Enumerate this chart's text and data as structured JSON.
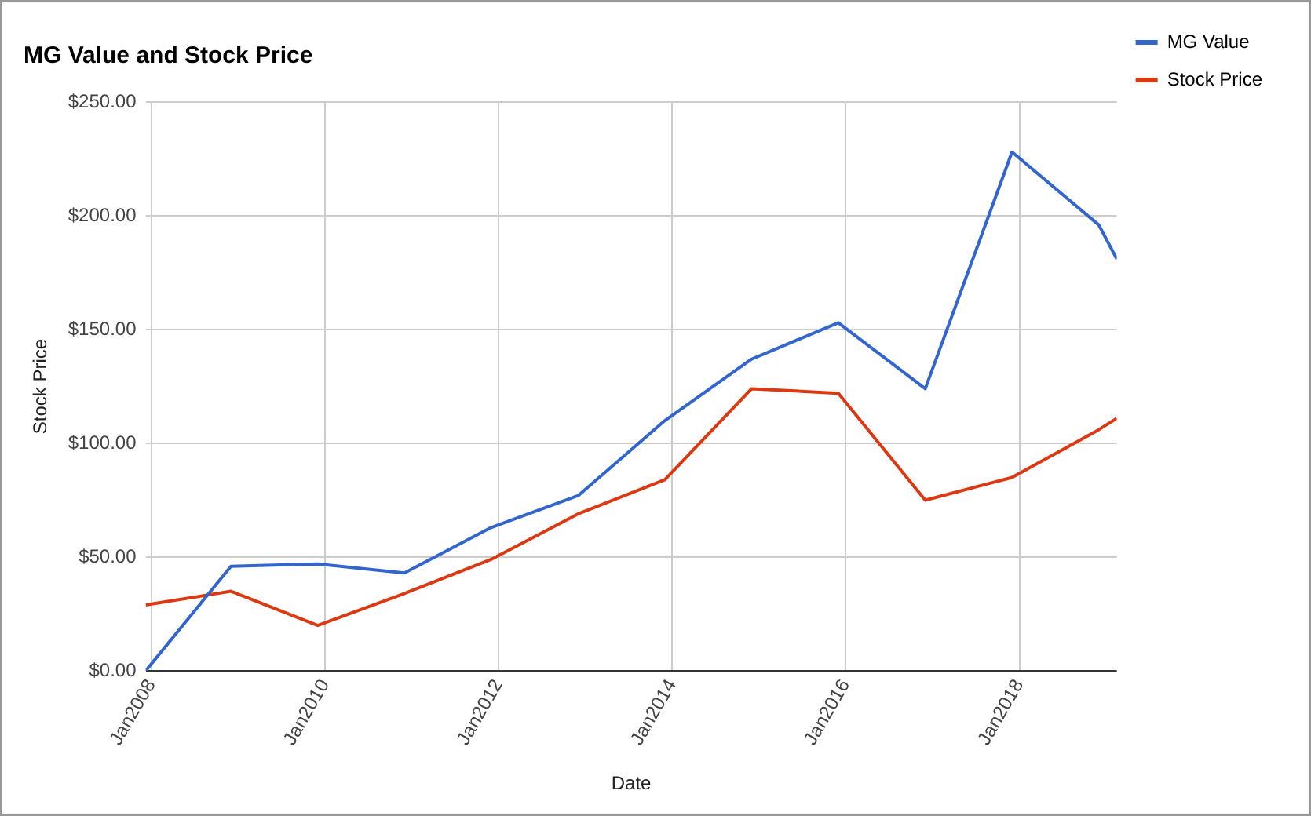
{
  "chart_data": {
    "type": "line",
    "title": "MG Value and Stock Price",
    "xlabel": "Date",
    "ylabel": "Stock Price",
    "x": [
      "2007-12-08",
      "2008-12-01",
      "2009-12-01",
      "2010-12-01",
      "2011-12-01",
      "2012-12-01",
      "2013-12-01",
      "2014-12-01",
      "2015-12-01",
      "2016-12-01",
      "2017-12-01",
      "2018-12-01",
      "2019-02-15"
    ],
    "series": [
      {
        "name": "MG Value",
        "color": "#3366cc",
        "values": [
          0,
          46,
          47,
          43,
          63,
          77,
          110,
          137,
          153,
          124,
          228,
          196,
          181
        ]
      },
      {
        "name": "Stock Price",
        "color": "#dc3912",
        "values": [
          29,
          35,
          20,
          34,
          49,
          69,
          84,
          124,
          122,
          75,
          85,
          106,
          111
        ]
      }
    ],
    "xlim": [
      "2007-12-08",
      "2019-02-15"
    ],
    "xticks": [
      {
        "value": "2008-01-01",
        "label": "Jan2008"
      },
      {
        "value": "2010-01-01",
        "label": "Jan2010"
      },
      {
        "value": "2012-01-01",
        "label": "Jan2012"
      },
      {
        "value": "2014-01-01",
        "label": "Jan2014"
      },
      {
        "value": "2016-01-01",
        "label": "Jan2016"
      },
      {
        "value": "2018-01-01",
        "label": "Jan2018"
      }
    ],
    "ylim": [
      0,
      250
    ],
    "yticks": [
      {
        "value": 0,
        "label": "$0.00"
      },
      {
        "value": 50,
        "label": "$50.00"
      },
      {
        "value": 100,
        "label": "$100.00"
      },
      {
        "value": 150,
        "label": "$150.00"
      },
      {
        "value": 200,
        "label": "$200.00"
      },
      {
        "value": 250,
        "label": "$250.00"
      }
    ],
    "grid": true,
    "legend": "right",
    "marker": "none",
    "line_style": "solid"
  }
}
